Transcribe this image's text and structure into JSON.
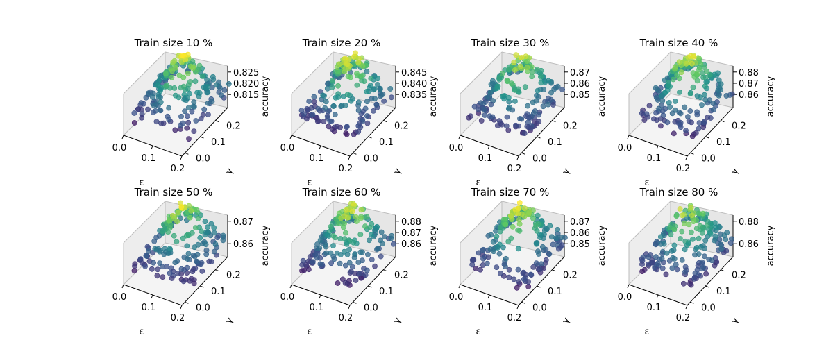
{
  "chart_data": [
    {
      "type": "scatter",
      "title": "Train size 10 %",
      "xlabel": "ε",
      "ylabel": "γ",
      "zlabel": "accuracy",
      "xticks": [
        "0.0",
        "0.1",
        "0.2"
      ],
      "yticks": [
        "0.0",
        "0.1",
        "0.2"
      ],
      "zticks": [
        "0.815",
        "0.820",
        "0.825"
      ],
      "xlim": [
        0,
        0.2
      ],
      "ylim": [
        0,
        0.25
      ],
      "zlim": [
        0.812,
        0.829
      ],
      "seed": 11
    },
    {
      "type": "scatter",
      "title": "Train size 20 %",
      "xlabel": "ε",
      "ylabel": "γ",
      "zlabel": "accuracy",
      "xticks": [
        "0.0",
        "0.1",
        "0.2"
      ],
      "yticks": [
        "0.0",
        "0.1",
        "0.2"
      ],
      "zticks": [
        "0.835",
        "0.840",
        "0.845"
      ],
      "xlim": [
        0,
        0.2
      ],
      "ylim": [
        0,
        0.25
      ],
      "zlim": [
        0.832,
        0.849
      ],
      "seed": 22
    },
    {
      "type": "scatter",
      "title": "Train size 30 %",
      "xlabel": "ε",
      "ylabel": "γ",
      "zlabel": "accuracy",
      "xticks": [
        "0.0",
        "0.1",
        "0.2"
      ],
      "yticks": [
        "0.0",
        "0.1",
        "0.2"
      ],
      "zticks": [
        "0.85",
        "0.86",
        "0.87"
      ],
      "xlim": [
        0,
        0.2
      ],
      "ylim": [
        0,
        0.25
      ],
      "zlim": [
        0.846,
        0.876
      ],
      "seed": 33
    },
    {
      "type": "scatter",
      "title": "Train size 40 %",
      "xlabel": "ε",
      "ylabel": "γ",
      "zlabel": "accuracy",
      "xticks": [
        "0.0",
        "0.1",
        "0.2"
      ],
      "yticks": [
        "0.0",
        "0.1",
        "0.2"
      ],
      "zticks": [
        "0.86",
        "0.87",
        "0.88"
      ],
      "xlim": [
        0,
        0.2
      ],
      "ylim": [
        0,
        0.25
      ],
      "zlim": [
        0.855,
        0.884
      ],
      "seed": 44
    },
    {
      "type": "scatter",
      "title": "Train size 50 %",
      "xlabel": "ε",
      "ylabel": "γ",
      "zlabel": "accuracy",
      "xticks": [
        "0.0",
        "0.1",
        "0.2"
      ],
      "yticks": [
        "0.0",
        "0.1",
        "0.2"
      ],
      "zticks": [
        "0.86",
        "0.87"
      ],
      "xlim": [
        0,
        0.2
      ],
      "ylim": [
        0,
        0.25
      ],
      "zlim": [
        0.852,
        0.879
      ],
      "seed": 55
    },
    {
      "type": "scatter",
      "title": "Train size 60 %",
      "xlabel": "ε",
      "ylabel": "γ",
      "zlabel": "accuracy",
      "xticks": [
        "0.0",
        "0.1",
        "0.2"
      ],
      "yticks": [
        "0.0",
        "0.1",
        "0.2"
      ],
      "zticks": [
        "0.86",
        "0.87",
        "0.88"
      ],
      "xlim": [
        0,
        0.2
      ],
      "ylim": [
        0,
        0.25
      ],
      "zlim": [
        0.853,
        0.886
      ],
      "seed": 66
    },
    {
      "type": "scatter",
      "title": "Train size 70 %",
      "xlabel": "ε",
      "ylabel": "γ",
      "zlabel": "accuracy",
      "xticks": [
        "0.0",
        "0.1",
        "0.2"
      ],
      "yticks": [
        "0.0",
        "0.1",
        "0.2"
      ],
      "zticks": [
        "0.85",
        "0.86",
        "0.87"
      ],
      "xlim": [
        0,
        0.2
      ],
      "ylim": [
        0,
        0.25
      ],
      "zlim": [
        0.846,
        0.878
      ],
      "seed": 77
    },
    {
      "type": "scatter",
      "title": "Train size 80 %",
      "xlabel": "ε",
      "ylabel": "γ",
      "zlabel": "accuracy",
      "xticks": [
        "0.0",
        "0.1",
        "0.2"
      ],
      "yticks": [
        "0.0",
        "0.1",
        "0.2"
      ],
      "zticks": [
        "0.86",
        "0.88"
      ],
      "xlim": [
        0,
        0.2
      ],
      "ylim": [
        0,
        0.25
      ],
      "zlim": [
        0.852,
        0.89
      ],
      "seed": 88
    }
  ],
  "colormap": [
    "#440154",
    "#3b528b",
    "#21918c",
    "#5ec962",
    "#fde725"
  ]
}
